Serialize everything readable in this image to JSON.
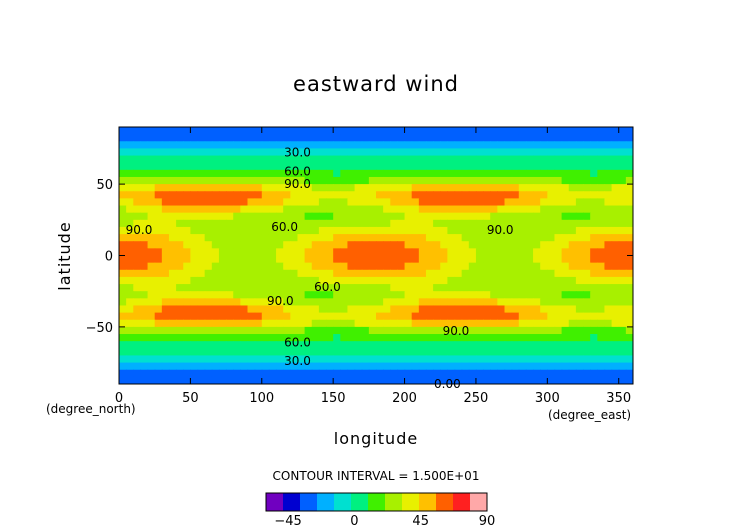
{
  "chart_data": {
    "type": "heatmap",
    "title": "eastward wind",
    "xlabel": "longitude",
    "ylabel": "latitude",
    "x_unit": "(degree_east)",
    "y_unit": "(degree_north)",
    "xlim": [
      0,
      360
    ],
    "ylim": [
      -90,
      90
    ],
    "x_ticks": [
      "0",
      "50",
      "100",
      "150",
      "200",
      "250",
      "300",
      "350"
    ],
    "y_ticks": [
      "50",
      "0",
      "−50"
    ],
    "contour_interval": 15,
    "contour_labels": [
      {
        "text": "30.0",
        "x": 125,
        "y": 72
      },
      {
        "text": "60.0",
        "x": 125,
        "y": 59
      },
      {
        "text": "90.0",
        "x": 125,
        "y": 50
      },
      {
        "text": "60.0",
        "x": 116,
        "y": 20
      },
      {
        "text": "90.0",
        "x": 14,
        "y": 18
      },
      {
        "text": "90.0",
        "x": 267,
        "y": 18
      },
      {
        "text": "60.0",
        "x": 146,
        "y": -22
      },
      {
        "text": "90.0",
        "x": 113,
        "y": -32
      },
      {
        "text": "90.0",
        "x": 236,
        "y": -53
      },
      {
        "text": "60.0",
        "x": 125,
        "y": -61
      },
      {
        "text": "30.0",
        "x": 125,
        "y": -74
      },
      {
        "text": "0.00",
        "x": 230,
        "y": -90
      }
    ],
    "colorbar": {
      "min": -60,
      "max": 90,
      "step": 15,
      "labels": [
        "−45",
        "0",
        "45",
        "90"
      ],
      "colors": [
        "#7000c0",
        "#0000d0",
        "#0060ff",
        "#00b0ff",
        "#00e0d0",
        "#00f080",
        "#40f000",
        "#a8f000",
        "#e8f000",
        "#ffc000",
        "#ff6000",
        "#ff2020",
        "#ffa8a8",
        "#ffffff"
      ]
    }
  },
  "contour_interval_label": "CONTOUR INTERVAL = 1.500E+01"
}
